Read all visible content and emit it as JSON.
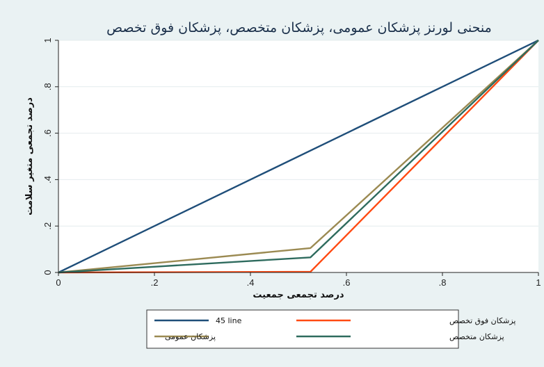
{
  "chart_data": {
    "type": "line",
    "title": "منحنی لورنز پزشکان عمومی، پزشکان متخصص، پزشکان فوق تخصص",
    "xlabel": "درصد تجمعی جمعیت",
    "ylabel": "درصد تجمعی متغیر سلامت",
    "xlim": [
      0,
      1
    ],
    "ylim": [
      0,
      1
    ],
    "x_ticks": [
      {
        "value": 0,
        "label": "0"
      },
      {
        "value": 0.2,
        "label": ".2"
      },
      {
        "value": 0.4,
        "label": ".4"
      },
      {
        "value": 0.6,
        "label": ".6"
      },
      {
        "value": 0.8,
        "label": ".8"
      },
      {
        "value": 1,
        "label": "1"
      }
    ],
    "y_ticks": [
      {
        "value": 0,
        "label": "0"
      },
      {
        "value": 0.2,
        "label": ".2"
      },
      {
        "value": 0.4,
        "label": ".4"
      },
      {
        "value": 0.6,
        "label": ".6"
      },
      {
        "value": 0.8,
        "label": ".8"
      },
      {
        "value": 1,
        "label": "1"
      }
    ],
    "grid": "horizontal",
    "legend_position": "bottom",
    "series": [
      {
        "name": "45 line",
        "color": "#1f4e79",
        "points": [
          [
            0,
            0
          ],
          [
            1,
            1
          ]
        ]
      },
      {
        "name": "پزشکان فوق تخصص",
        "color": "#ff4a12",
        "points": [
          [
            0,
            0
          ],
          [
            0.525,
            0.003
          ],
          [
            1,
            1
          ]
        ]
      },
      {
        "name": "پزشکان عمومی",
        "color": "#9b8a52",
        "points": [
          [
            0,
            0
          ],
          [
            0.525,
            0.105
          ],
          [
            1,
            1
          ]
        ]
      },
      {
        "name": "پزشکان متخصص",
        "color": "#2e6b5e",
        "points": [
          [
            0,
            0
          ],
          [
            0.525,
            0.065
          ],
          [
            1,
            1
          ]
        ]
      }
    ]
  }
}
